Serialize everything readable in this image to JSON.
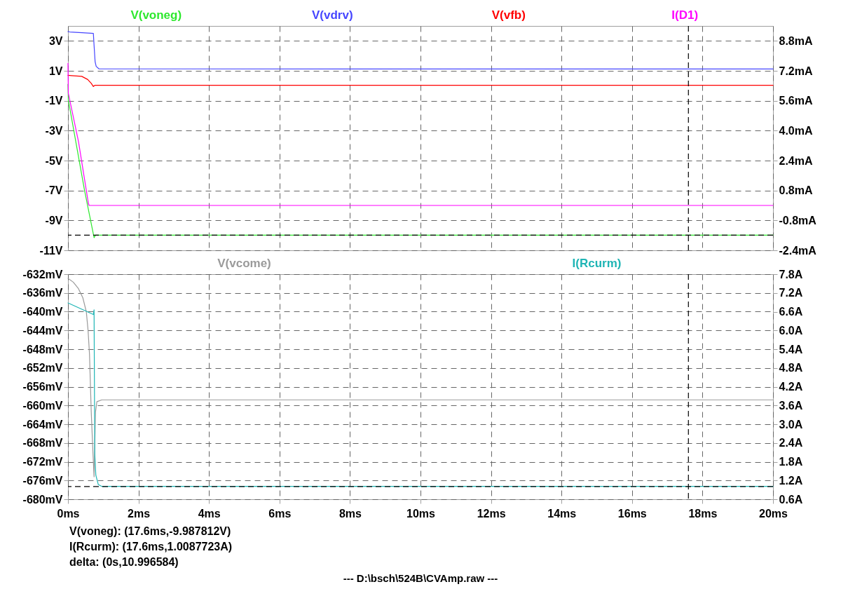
{
  "chart_data": [
    {
      "type": "line",
      "legend": "top",
      "grid": true,
      "tick_labels": "y",
      "xlim": [
        0,
        20
      ],
      "xticks": [
        {
          "value": 0,
          "label": null
        },
        {
          "value": 2,
          "label": null
        },
        {
          "value": 4,
          "label": null
        },
        {
          "value": 6,
          "label": null
        },
        {
          "value": 8,
          "label": null
        },
        {
          "value": 10,
          "label": null
        },
        {
          "value": 12,
          "label": null
        },
        {
          "value": 14,
          "label": null
        },
        {
          "value": 16,
          "label": null
        },
        {
          "value": 18,
          "label": null
        },
        {
          "value": 20,
          "label": null
        }
      ],
      "ylim": [
        -11,
        4
      ],
      "yticks": [
        {
          "value": 3,
          "label": "3V"
        },
        {
          "value": 1,
          "label": "1V"
        },
        {
          "value": -1,
          "label": "-1V"
        },
        {
          "value": -3,
          "label": "-3V"
        },
        {
          "value": -5,
          "label": "-5V"
        },
        {
          "value": -7,
          "label": "-7V"
        },
        {
          "value": -9,
          "label": "-9V"
        },
        {
          "value": -11,
          "label": "-11V"
        }
      ],
      "y2lim": [
        -2.4,
        9.6
      ],
      "y2ticks": [
        {
          "value": 8.8,
          "label": "8.8mA"
        },
        {
          "value": 7.2,
          "label": "7.2mA"
        },
        {
          "value": 5.6,
          "label": "5.6mA"
        },
        {
          "value": 4.0,
          "label": "4.0mA"
        },
        {
          "value": 2.4,
          "label": "2.4mA"
        },
        {
          "value": 0.8,
          "label": "0.8mA"
        },
        {
          "value": -0.8,
          "label": "-0.8mA"
        },
        {
          "value": -2.4,
          "label": "-2.4mA"
        }
      ],
      "series": [
        {
          "name": "V(voneg)",
          "color": "#2ee82e",
          "x": [
            0,
            0.01,
            0.47,
            0.74,
            0.78,
            20
          ],
          "values": [
            0.1,
            -0.95,
            -7.0,
            -10.15,
            -9.99,
            -9.99
          ]
        },
        {
          "name": "V(vdrv)",
          "color": "#4646ff",
          "x": [
            0,
            0.05,
            0.4,
            0.72,
            0.74,
            0.77,
            0.8,
            0.88,
            20
          ],
          "values": [
            3.62,
            3.6,
            3.55,
            3.5,
            2.7,
            1.6,
            1.3,
            1.13,
            1.12
          ]
        },
        {
          "name": "V(vfb)",
          "color": "#ff0000",
          "x": [
            0,
            0.1,
            0.39,
            0.56,
            0.66,
            0.72,
            0.76,
            20
          ],
          "values": [
            0.7,
            0.68,
            0.63,
            0.42,
            0.16,
            -0.05,
            0.03,
            0.03
          ]
        },
        {
          "name": "I(D1)",
          "color": "#ff00ff",
          "axis": "y2",
          "x": [
            0,
            0.01,
            0.3,
            0.58,
            0.6,
            20
          ],
          "values": [
            7.6,
            6.0,
            3.4,
            0.1,
            0.0,
            0.0
          ]
        }
      ],
      "ref_lines": [
        {
          "axis": "y",
          "value": -9.987812,
          "color": "#000000",
          "line_style": "dashed"
        },
        {
          "axis": "x",
          "value": 17.6,
          "color": "#000000",
          "line_style": "dashed"
        }
      ]
    },
    {
      "type": "line",
      "legend": "top",
      "grid": true,
      "xlim": [
        0,
        20
      ],
      "xticks": [
        {
          "value": 0,
          "label": "0ms"
        },
        {
          "value": 2,
          "label": "2ms"
        },
        {
          "value": 4,
          "label": "4ms"
        },
        {
          "value": 6,
          "label": "6ms"
        },
        {
          "value": 8,
          "label": "8ms"
        },
        {
          "value": 10,
          "label": "10ms"
        },
        {
          "value": 12,
          "label": "12ms"
        },
        {
          "value": 14,
          "label": "14ms"
        },
        {
          "value": 16,
          "label": "16ms"
        },
        {
          "value": 18,
          "label": "18ms"
        },
        {
          "value": 20,
          "label": "20ms"
        }
      ],
      "ylim": [
        -680,
        -632
      ],
      "yticks": [
        {
          "value": -632,
          "label": "-632mV"
        },
        {
          "value": -636,
          "label": "-636mV"
        },
        {
          "value": -640,
          "label": "-640mV"
        },
        {
          "value": -644,
          "label": "-644mV"
        },
        {
          "value": -648,
          "label": "-648mV"
        },
        {
          "value": -652,
          "label": "-652mV"
        },
        {
          "value": -656,
          "label": "-656mV"
        },
        {
          "value": -660,
          "label": "-660mV"
        },
        {
          "value": -664,
          "label": "-664mV"
        },
        {
          "value": -668,
          "label": "-668mV"
        },
        {
          "value": -672,
          "label": "-672mV"
        },
        {
          "value": -676,
          "label": "-676mV"
        },
        {
          "value": -680,
          "label": "-680mV"
        }
      ],
      "y2lim": [
        0.6,
        7.8
      ],
      "y2ticks": [
        {
          "value": 7.8,
          "label": "7.8A"
        },
        {
          "value": 7.2,
          "label": "7.2A"
        },
        {
          "value": 6.6,
          "label": "6.6A"
        },
        {
          "value": 6.0,
          "label": "6.0A"
        },
        {
          "value": 5.4,
          "label": "5.4A"
        },
        {
          "value": 4.8,
          "label": "4.8A"
        },
        {
          "value": 4.2,
          "label": "4.2A"
        },
        {
          "value": 3.6,
          "label": "3.6A"
        },
        {
          "value": 3.0,
          "label": "3.0A"
        },
        {
          "value": 2.4,
          "label": "2.4A"
        },
        {
          "value": 1.8,
          "label": "1.8A"
        },
        {
          "value": 1.2,
          "label": "1.2A"
        },
        {
          "value": 0.6,
          "label": "0.6A"
        }
      ],
      "series": [
        {
          "name": "V(vcome)",
          "color": "#9a9a9a",
          "x": [
            0,
            0.15,
            0.29,
            0.42,
            0.52,
            0.57,
            0.61,
            0.66,
            0.71,
            0.74,
            0.78,
            0.82,
            0.96,
            20
          ],
          "values": [
            -632.9,
            -633.7,
            -635.0,
            -637.0,
            -640.0,
            -644.0,
            -649.0,
            -661.4,
            -670.4,
            -675.2,
            -661.4,
            -659.2,
            -658.8,
            -658.8
          ]
        },
        {
          "name": "I(Rcurm)",
          "color": "#1fb5b5",
          "axis": "y2",
          "x": [
            0,
            0.72,
            0.74,
            0.76,
            0.79,
            0.86,
            0.96,
            20
          ],
          "values": [
            6.88,
            6.51,
            6.66,
            2.04,
            1.37,
            1.07,
            1.01,
            1.01
          ]
        }
      ],
      "ref_lines": [
        {
          "axis": "y2",
          "value": 1.0087723,
          "color": "#000000",
          "line_style": "dashed"
        },
        {
          "axis": "x",
          "value": 17.6,
          "color": "#000000",
          "line_style": "dashed"
        }
      ],
      "annotations": [
        "V(voneg): (17.6ms,-9.987812V)",
        "I(Rcurm): (17.6ms,1.0087723A)",
        "delta: (0s,10.996584)",
        "---  D:\\bsch\\524B\\CVAmp.raw  ---"
      ]
    }
  ]
}
